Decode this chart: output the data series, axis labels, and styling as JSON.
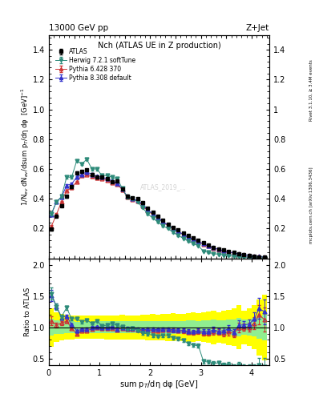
{
  "title_left": "13000 GeV pp",
  "title_right": "Z+Jet",
  "plot_title": "Nch (ATLAS UE in Z production)",
  "ylabel_main": "1/N$_{ev}$ dN$_{ev}$/dsum p$_T$/dη dφ  [GeV]$^{-1}$",
  "ylabel_ratio": "Ratio to ATLAS",
  "xlabel": "sum p$_T$/dη dφ [GeV]",
  "right_label": "Rivet 3.1.10, ≥ 3.4M events",
  "right_label2": "mcplots.cern.ch [arXiv:1306.3436]",
  "watermark": "ATLAS_2019_...",
  "atlas_x": [
    0.05,
    0.15,
    0.25,
    0.35,
    0.45,
    0.55,
    0.65,
    0.75,
    0.85,
    0.95,
    1.05,
    1.15,
    1.25,
    1.35,
    1.45,
    1.55,
    1.65,
    1.75,
    1.85,
    1.95,
    2.05,
    2.15,
    2.25,
    2.35,
    2.45,
    2.55,
    2.65,
    2.75,
    2.85,
    2.95,
    3.05,
    3.15,
    3.25,
    3.35,
    3.45,
    3.55,
    3.65,
    3.75,
    3.85,
    3.95,
    4.05,
    4.15,
    4.25
  ],
  "atlas_y": [
    0.195,
    0.285,
    0.355,
    0.415,
    0.48,
    0.575,
    0.585,
    0.595,
    0.565,
    0.545,
    0.545,
    0.535,
    0.515,
    0.52,
    0.465,
    0.42,
    0.405,
    0.4,
    0.375,
    0.335,
    0.31,
    0.285,
    0.255,
    0.23,
    0.21,
    0.19,
    0.17,
    0.155,
    0.14,
    0.12,
    0.105,
    0.09,
    0.075,
    0.065,
    0.055,
    0.045,
    0.04,
    0.03,
    0.025,
    0.02,
    0.015,
    0.01,
    0.008
  ],
  "atlas_yerr": [
    0.01,
    0.008,
    0.007,
    0.007,
    0.007,
    0.007,
    0.007,
    0.007,
    0.007,
    0.007,
    0.007,
    0.007,
    0.007,
    0.007,
    0.007,
    0.006,
    0.006,
    0.006,
    0.006,
    0.006,
    0.006,
    0.005,
    0.005,
    0.005,
    0.005,
    0.004,
    0.004,
    0.004,
    0.004,
    0.003,
    0.003,
    0.003,
    0.003,
    0.002,
    0.002,
    0.002,
    0.002,
    0.002,
    0.001,
    0.001,
    0.001,
    0.001,
    0.001
  ],
  "herwig_x": [
    0.05,
    0.15,
    0.25,
    0.35,
    0.45,
    0.55,
    0.65,
    0.75,
    0.85,
    0.95,
    1.05,
    1.15,
    1.25,
    1.35,
    1.45,
    1.55,
    1.65,
    1.75,
    1.85,
    1.95,
    2.05,
    2.15,
    2.25,
    2.35,
    2.45,
    2.55,
    2.65,
    2.75,
    2.85,
    2.95,
    3.05,
    3.15,
    3.25,
    3.35,
    3.45,
    3.55,
    3.65,
    3.75,
    3.85,
    3.95,
    4.05,
    4.15,
    4.25
  ],
  "herwig_y": [
    0.3,
    0.38,
    0.415,
    0.545,
    0.545,
    0.655,
    0.635,
    0.665,
    0.6,
    0.6,
    0.555,
    0.555,
    0.545,
    0.535,
    0.47,
    0.41,
    0.4,
    0.38,
    0.34,
    0.3,
    0.27,
    0.245,
    0.22,
    0.2,
    0.175,
    0.155,
    0.135,
    0.115,
    0.1,
    0.085,
    0.048,
    0.04,
    0.032,
    0.028,
    0.022,
    0.018,
    0.015,
    0.012,
    0.009,
    0.007,
    0.005,
    0.004,
    0.003
  ],
  "herwig_yerr": [
    0.01,
    0.009,
    0.008,
    0.008,
    0.008,
    0.008,
    0.008,
    0.008,
    0.008,
    0.008,
    0.008,
    0.007,
    0.007,
    0.007,
    0.007,
    0.007,
    0.006,
    0.006,
    0.005,
    0.005,
    0.005,
    0.004,
    0.004,
    0.004,
    0.004,
    0.004,
    0.003,
    0.003,
    0.003,
    0.003,
    0.003,
    0.002,
    0.002,
    0.002,
    0.002,
    0.002,
    0.001,
    0.001,
    0.001,
    0.001,
    0.001,
    0.001,
    0.001
  ],
  "pythia6_x": [
    0.05,
    0.15,
    0.25,
    0.35,
    0.45,
    0.55,
    0.65,
    0.75,
    0.85,
    0.95,
    1.05,
    1.15,
    1.25,
    1.35,
    1.45,
    1.55,
    1.65,
    1.75,
    1.85,
    1.95,
    2.05,
    2.15,
    2.25,
    2.35,
    2.45,
    2.55,
    2.65,
    2.75,
    2.85,
    2.95,
    3.05,
    3.15,
    3.25,
    3.35,
    3.45,
    3.55,
    3.65,
    3.75,
    3.85,
    3.95,
    4.05,
    4.15,
    4.25
  ],
  "pythia6_y": [
    0.215,
    0.295,
    0.38,
    0.455,
    0.475,
    0.515,
    0.555,
    0.565,
    0.55,
    0.54,
    0.535,
    0.525,
    0.51,
    0.5,
    0.46,
    0.41,
    0.395,
    0.385,
    0.355,
    0.32,
    0.295,
    0.27,
    0.245,
    0.22,
    0.2,
    0.18,
    0.16,
    0.143,
    0.128,
    0.112,
    0.095,
    0.082,
    0.07,
    0.06,
    0.05,
    0.042,
    0.036,
    0.03,
    0.025,
    0.02,
    0.016,
    0.012,
    0.009
  ],
  "pythia6_yerr": [
    0.009,
    0.008,
    0.007,
    0.007,
    0.007,
    0.007,
    0.007,
    0.007,
    0.007,
    0.007,
    0.007,
    0.007,
    0.006,
    0.006,
    0.006,
    0.006,
    0.006,
    0.005,
    0.005,
    0.005,
    0.005,
    0.004,
    0.004,
    0.004,
    0.004,
    0.004,
    0.003,
    0.003,
    0.003,
    0.003,
    0.003,
    0.002,
    0.002,
    0.002,
    0.002,
    0.002,
    0.001,
    0.001,
    0.001,
    0.001,
    0.001,
    0.001,
    0.001
  ],
  "pythia8_x": [
    0.05,
    0.15,
    0.25,
    0.35,
    0.45,
    0.55,
    0.65,
    0.75,
    0.85,
    0.95,
    1.05,
    1.15,
    1.25,
    1.35,
    1.45,
    1.55,
    1.65,
    1.75,
    1.85,
    1.95,
    2.05,
    2.15,
    2.25,
    2.35,
    2.45,
    2.55,
    2.65,
    2.75,
    2.85,
    2.95,
    3.05,
    3.15,
    3.25,
    3.35,
    3.45,
    3.55,
    3.65,
    3.75,
    3.85,
    3.95,
    4.05,
    4.15,
    4.25
  ],
  "pythia8_y": [
    0.295,
    0.38,
    0.41,
    0.49,
    0.5,
    0.545,
    0.565,
    0.58,
    0.565,
    0.55,
    0.545,
    0.535,
    0.52,
    0.505,
    0.465,
    0.415,
    0.4,
    0.39,
    0.36,
    0.325,
    0.3,
    0.275,
    0.248,
    0.224,
    0.202,
    0.182,
    0.162,
    0.145,
    0.13,
    0.114,
    0.098,
    0.084,
    0.072,
    0.061,
    0.052,
    0.044,
    0.037,
    0.031,
    0.026,
    0.021,
    0.017,
    0.013,
    0.01
  ],
  "pythia8_yerr": [
    0.009,
    0.008,
    0.007,
    0.007,
    0.007,
    0.007,
    0.007,
    0.007,
    0.007,
    0.007,
    0.007,
    0.007,
    0.006,
    0.006,
    0.006,
    0.006,
    0.006,
    0.005,
    0.005,
    0.005,
    0.005,
    0.004,
    0.004,
    0.004,
    0.004,
    0.004,
    0.003,
    0.003,
    0.003,
    0.003,
    0.003,
    0.002,
    0.002,
    0.002,
    0.002,
    0.002,
    0.001,
    0.001,
    0.001,
    0.001,
    0.001,
    0.001,
    0.001
  ],
  "herwig_color": "#2e8b7a",
  "pythia6_color": "#cc3333",
  "pythia8_color": "#3333cc",
  "atlas_color": "#000000",
  "ratio_ylim": [
    0.4,
    2.1
  ],
  "ratio_yticks_show": [
    0.5,
    1.0,
    1.5,
    2.0
  ],
  "main_ylim": [
    0.0,
    1.5
  ],
  "xlim": [
    0.0,
    4.35
  ],
  "xticks": [
    0,
    1,
    2,
    3,
    4
  ],
  "main_yticks": [
    0.2,
    0.4,
    0.6,
    0.8,
    1.0,
    1.2,
    1.4
  ]
}
